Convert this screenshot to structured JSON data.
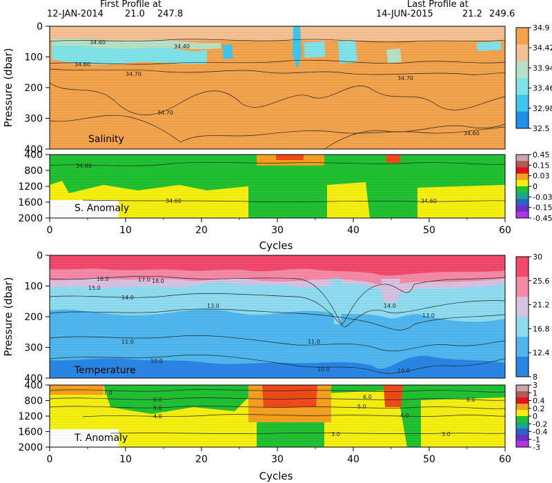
{
  "header": {
    "first_title": "First Profile at",
    "first_date": "12-JAN-2014",
    "first_lat": "21.0",
    "first_lon": "247.8",
    "last_title": "Last Profile at",
    "last_date": "14-JUN-2015",
    "last_lat": "21.2",
    "last_lon": "249.6"
  },
  "chart_data": [
    {
      "type": "heatmap",
      "panel": "Salinity",
      "ylabel": "Pressure (dbar)",
      "xlim": [
        0,
        60
      ],
      "ylim": [
        400,
        0
      ],
      "yticks": [
        "0",
        "100",
        "200",
        "300",
        "400"
      ],
      "colorbar_ticks": [
        "34.9",
        "34.42",
        "33.94",
        "33.46",
        "32.98",
        "32.5"
      ],
      "contour_labels": [
        "34.60",
        "34.40",
        "34.60",
        "34.70",
        "34.70",
        "34.70",
        "34.60"
      ],
      "colors": [
        "#f3a34c",
        "#f5c193",
        "#b8e0c5",
        "#7fe3e8",
        "#3fc6ee",
        "#1f8fe8"
      ]
    },
    {
      "type": "heatmap",
      "panel": "S. Anomaly",
      "ylim": [
        2000,
        400
      ],
      "yticks": [
        "400",
        "800",
        "1200",
        "1600",
        "2000"
      ],
      "colorbar_ticks": [
        "0.45",
        "0.15",
        "0.03",
        "0",
        "-0.03",
        "-0.15",
        "-0.45"
      ],
      "contour_labels": [
        "34.60",
        "34.60",
        "34.60"
      ],
      "xlabel": "Cycles",
      "xticks": [
        "0",
        "10",
        "20",
        "30",
        "40",
        "50",
        "60"
      ]
    },
    {
      "type": "heatmap",
      "panel": "Temperature",
      "ylabel": "Pressure (dbar)",
      "xlim": [
        0,
        60
      ],
      "ylim": [
        400,
        0
      ],
      "yticks": [
        "0",
        "100",
        "200",
        "300",
        "400"
      ],
      "colorbar_ticks": [
        "30",
        "25.6",
        "21.2",
        "16.8",
        "12.4",
        "8"
      ],
      "contour_labels": [
        "16.0",
        "15.0",
        "17.0",
        "18.0",
        "14.0",
        "13.0",
        "14.0",
        "13.0",
        "11.0",
        "11.0",
        "10.0",
        "10.0",
        "10.0"
      ],
      "colors": [
        "#f24a6a",
        "#f48aa6",
        "#d7c2e2",
        "#8fdcf0",
        "#4fb6ee",
        "#2a86e4"
      ]
    },
    {
      "type": "heatmap",
      "panel": "T. Anomaly",
      "ylim": [
        2000,
        400
      ],
      "yticks": [
        "400",
        "800",
        "1200",
        "1600",
        "2000"
      ],
      "colorbar_ticks": [
        "3",
        "1",
        "0.4",
        "0.2",
        "0",
        "-0.2",
        "-0.4",
        "-1",
        "-3"
      ],
      "contour_labels": [
        "7.0",
        "6.0",
        "5.0",
        "4.0",
        "3.0",
        "8.0",
        "6.0",
        "5.0",
        "4.0",
        "3.0"
      ],
      "xlabel": "Cycles",
      "xticks": [
        "0",
        "10",
        "20",
        "30",
        "40",
        "50",
        "60"
      ]
    }
  ]
}
